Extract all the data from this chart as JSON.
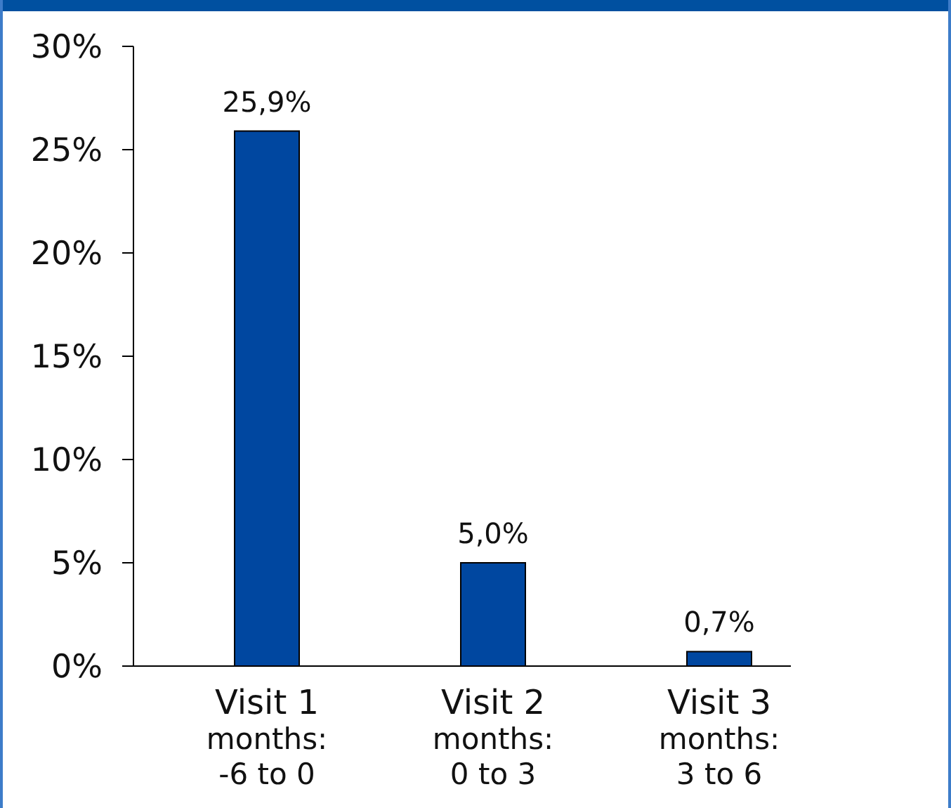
{
  "chart_data": {
    "type": "bar",
    "categories": [
      "Visit 1\nmonths:\n-6 to 0",
      "Visit 2\nmonths:\n0 to 3",
      "Visit 3\nmonths:\n3 to 6"
    ],
    "values": [
      25.9,
      5.0,
      0.7
    ],
    "value_labels": [
      "25,9%",
      "5,0%",
      "0,7%"
    ],
    "color": "#0047a0",
    "ylim": [
      0,
      30
    ],
    "yticks": [
      {
        "value": 0,
        "label": "0%"
      },
      {
        "value": 5,
        "label": "5%"
      },
      {
        "value": 10,
        "label": "10%"
      },
      {
        "value": 15,
        "label": "15%"
      },
      {
        "value": 20,
        "label": "20%"
      },
      {
        "value": 25,
        "label": "25%"
      },
      {
        "value": 30,
        "label": "30%"
      }
    ],
    "grid": false
  }
}
